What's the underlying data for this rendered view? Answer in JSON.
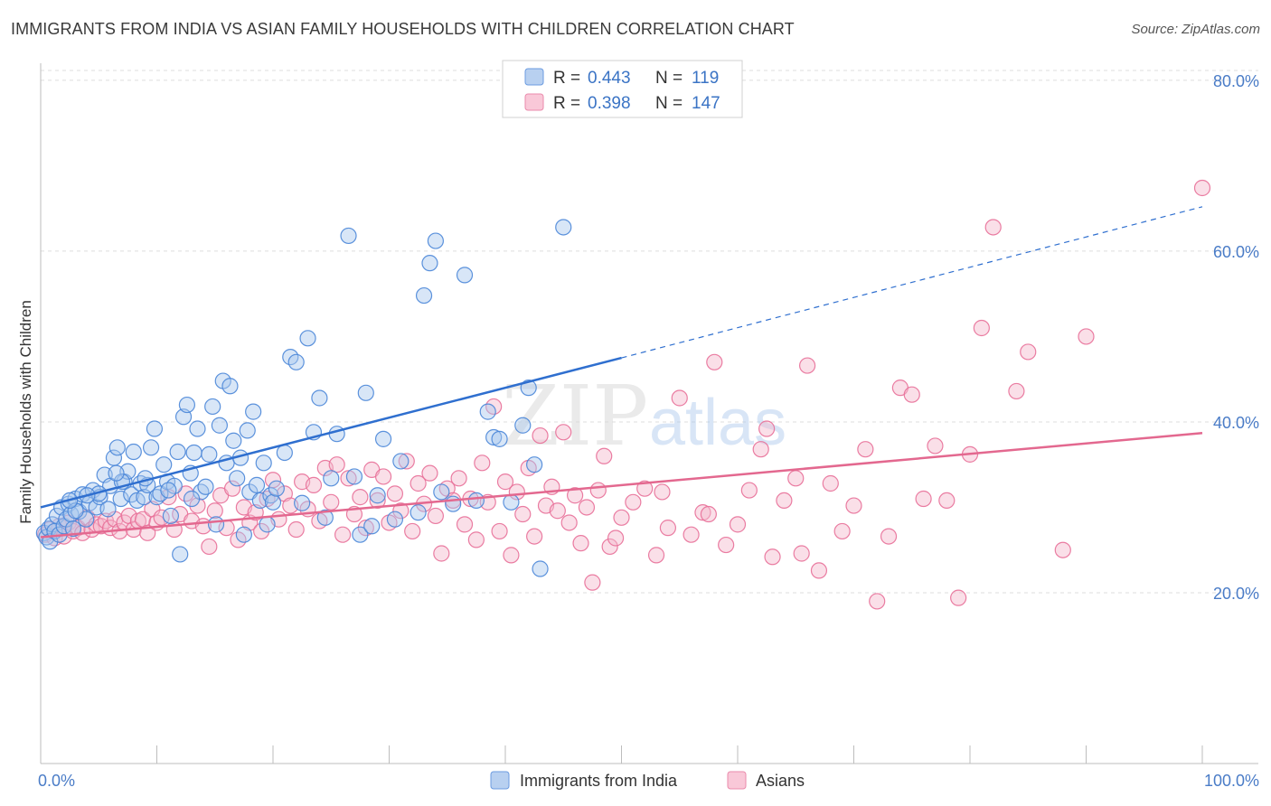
{
  "title": "IMMIGRANTS FROM INDIA VS ASIAN FAMILY HOUSEHOLDS WITH CHILDREN CORRELATION CHART",
  "source": "Source: ZipAtlas.com",
  "watermark": {
    "zip": "ZIP",
    "atlas": "atlas"
  },
  "colors": {
    "blue": "#4a86d8",
    "blue_fill": "#a9c7ee",
    "blue_line": "#2f6fcf",
    "pink": "#e86f98",
    "pink_fill": "#f4b8cc",
    "pink_line": "#e3688f",
    "axis_text": "#4a7cc7",
    "grid": "#dddddd"
  },
  "legend": [
    {
      "r_label": "R =",
      "r_value": "0.443",
      "n_label": "N =",
      "n_value": "119"
    },
    {
      "r_label": "R =",
      "r_value": "0.398",
      "n_label": "N =",
      "n_value": "147"
    }
  ],
  "chart_data": {
    "type": "scatter",
    "title": "IMMIGRANTS FROM INDIA VS ASIAN FAMILY HOUSEHOLDS WITH CHILDREN CORRELATION CHART",
    "xlabel": "",
    "ylabel": "Family Households with Children",
    "xlim": [
      0,
      100
    ],
    "ylim": [
      0,
      82
    ],
    "x_tick_labels": [
      "0.0%",
      "100.0%"
    ],
    "y_ticks": [
      20,
      40,
      60,
      80
    ],
    "y_tick_labels": [
      "20.0%",
      "40.0%",
      "60.0%",
      "80.0%"
    ],
    "grid": true,
    "legend_position": "top-center",
    "series": [
      {
        "name": "Immigrants from India",
        "r": 0.443,
        "n": 119,
        "trend": {
          "x0": 0,
          "y0": 30.0,
          "x1": 50,
          "y1": 47.5,
          "dashed_to_x": 100,
          "dashed_to_y": 65.2
        },
        "points": [
          [
            0.3,
            27.0
          ],
          [
            0.5,
            26.5
          ],
          [
            0.7,
            27.5
          ],
          [
            0.8,
            26.0
          ],
          [
            1.0,
            28.0
          ],
          [
            1.2,
            27.2
          ],
          [
            1.4,
            29.0
          ],
          [
            1.6,
            26.8
          ],
          [
            1.8,
            30.0
          ],
          [
            2.0,
            27.8
          ],
          [
            2.2,
            28.6
          ],
          [
            2.4,
            30.4
          ],
          [
            2.6,
            29.2
          ],
          [
            2.8,
            27.5
          ],
          [
            3.0,
            31.0
          ],
          [
            3.3,
            29.5
          ],
          [
            3.6,
            31.5
          ],
          [
            3.9,
            28.6
          ],
          [
            4.2,
            30.5
          ],
          [
            4.5,
            32.0
          ],
          [
            4.8,
            30.0
          ],
          [
            5.1,
            31.2
          ],
          [
            5.5,
            33.8
          ],
          [
            5.8,
            29.8
          ],
          [
            6.0,
            32.5
          ],
          [
            6.3,
            35.8
          ],
          [
            6.6,
            37.0
          ],
          [
            6.9,
            31.0
          ],
          [
            7.2,
            33.0
          ],
          [
            7.5,
            34.2
          ],
          [
            7.8,
            31.5
          ],
          [
            8.0,
            36.5
          ],
          [
            8.3,
            30.8
          ],
          [
            8.6,
            32.8
          ],
          [
            8.9,
            31.2
          ],
          [
            9.2,
            32.6
          ],
          [
            9.5,
            37.0
          ],
          [
            9.8,
            39.2
          ],
          [
            10.0,
            31.2
          ],
          [
            10.3,
            31.6
          ],
          [
            10.6,
            35.0
          ],
          [
            10.9,
            33.0
          ],
          [
            11.2,
            29.0
          ],
          [
            11.5,
            32.5
          ],
          [
            11.8,
            36.5
          ],
          [
            12.0,
            24.5
          ],
          [
            12.3,
            40.6
          ],
          [
            12.6,
            42.0
          ],
          [
            12.9,
            34.0
          ],
          [
            13.2,
            36.4
          ],
          [
            13.5,
            39.2
          ],
          [
            13.8,
            31.8
          ],
          [
            14.2,
            32.4
          ],
          [
            14.5,
            36.2
          ],
          [
            14.8,
            41.8
          ],
          [
            15.1,
            28.0
          ],
          [
            15.4,
            39.6
          ],
          [
            15.7,
            44.8
          ],
          [
            16.0,
            35.2
          ],
          [
            16.3,
            44.2
          ],
          [
            16.6,
            37.8
          ],
          [
            16.9,
            33.4
          ],
          [
            17.2,
            35.8
          ],
          [
            17.5,
            26.8
          ],
          [
            17.8,
            39.0
          ],
          [
            18.0,
            31.8
          ],
          [
            18.3,
            41.2
          ],
          [
            18.6,
            32.6
          ],
          [
            18.9,
            30.8
          ],
          [
            19.2,
            35.2
          ],
          [
            19.5,
            28.0
          ],
          [
            19.8,
            31.4
          ],
          [
            20.0,
            30.6
          ],
          [
            20.3,
            32.2
          ],
          [
            21.0,
            36.4
          ],
          [
            21.5,
            47.6
          ],
          [
            22.0,
            47.0
          ],
          [
            22.5,
            30.5
          ],
          [
            23.0,
            49.8
          ],
          [
            23.5,
            38.8
          ],
          [
            24.0,
            42.8
          ],
          [
            24.5,
            28.8
          ],
          [
            25.0,
            33.4
          ],
          [
            25.5,
            38.6
          ],
          [
            26.5,
            61.8
          ],
          [
            27.0,
            33.6
          ],
          [
            27.5,
            26.8
          ],
          [
            28.0,
            43.4
          ],
          [
            28.5,
            27.8
          ],
          [
            29.0,
            31.4
          ],
          [
            29.5,
            38.0
          ],
          [
            30.5,
            28.6
          ],
          [
            31.0,
            35.4
          ],
          [
            32.5,
            29.4
          ],
          [
            33.0,
            54.8
          ],
          [
            33.5,
            58.6
          ],
          [
            34.0,
            61.2
          ],
          [
            34.5,
            31.8
          ],
          [
            35.5,
            30.4
          ],
          [
            36.5,
            57.2
          ],
          [
            37.5,
            30.8
          ],
          [
            38.5,
            41.2
          ],
          [
            39.0,
            38.2
          ],
          [
            39.5,
            38.0
          ],
          [
            40.5,
            30.6
          ],
          [
            41.5,
            39.6
          ],
          [
            42.0,
            44.0
          ],
          [
            42.5,
            35.0
          ],
          [
            43.0,
            22.8
          ],
          [
            45.0,
            62.8
          ],
          [
            7.0,
            33.0
          ],
          [
            5.0,
            31.6
          ],
          [
            3.0,
            29.6
          ],
          [
            11.0,
            32.0
          ],
          [
            9.0,
            33.4
          ],
          [
            13.0,
            31.0
          ],
          [
            2.5,
            30.8
          ],
          [
            4.0,
            31.4
          ],
          [
            6.5,
            34.0
          ]
        ]
      },
      {
        "name": "Asians",
        "r": 0.398,
        "n": 147,
        "trend": {
          "x0": 0,
          "y0": 26.5,
          "x1": 100,
          "y1": 38.7
        },
        "points": [
          [
            0.4,
            26.8
          ],
          [
            0.8,
            27.4
          ],
          [
            1.2,
            26.4
          ],
          [
            1.6,
            27.8
          ],
          [
            2.0,
            26.6
          ],
          [
            2.4,
            28.2
          ],
          [
            2.8,
            27.2
          ],
          [
            3.2,
            27.6
          ],
          [
            3.6,
            27.0
          ],
          [
            4.0,
            28.8
          ],
          [
            4.4,
            27.4
          ],
          [
            4.8,
            28.0
          ],
          [
            5.2,
            27.8
          ],
          [
            5.6,
            28.4
          ],
          [
            6.0,
            27.6
          ],
          [
            6.4,
            28.6
          ],
          [
            6.8,
            27.2
          ],
          [
            7.2,
            28.2
          ],
          [
            7.6,
            29.0
          ],
          [
            8.0,
            27.4
          ],
          [
            8.4,
            28.4
          ],
          [
            8.8,
            28.6
          ],
          [
            9.2,
            27.0
          ],
          [
            9.6,
            29.8
          ],
          [
            10.0,
            28.2
          ],
          [
            10.4,
            28.8
          ],
          [
            11.0,
            31.2
          ],
          [
            11.5,
            27.4
          ],
          [
            12.0,
            29.2
          ],
          [
            12.5,
            31.6
          ],
          [
            13.0,
            28.4
          ],
          [
            13.5,
            30.2
          ],
          [
            14.0,
            27.8
          ],
          [
            14.5,
            25.4
          ],
          [
            15.0,
            29.6
          ],
          [
            15.5,
            31.4
          ],
          [
            16.0,
            27.6
          ],
          [
            16.5,
            32.2
          ],
          [
            17.0,
            26.2
          ],
          [
            17.5,
            30.0
          ],
          [
            18.0,
            28.2
          ],
          [
            18.5,
            29.4
          ],
          [
            19.0,
            27.2
          ],
          [
            19.5,
            31.0
          ],
          [
            20.0,
            33.2
          ],
          [
            20.5,
            28.6
          ],
          [
            21.0,
            31.6
          ],
          [
            21.5,
            30.2
          ],
          [
            22.0,
            27.4
          ],
          [
            22.5,
            33.0
          ],
          [
            23.0,
            29.8
          ],
          [
            23.5,
            32.6
          ],
          [
            24.0,
            28.4
          ],
          [
            24.5,
            34.6
          ],
          [
            25.0,
            30.6
          ],
          [
            25.5,
            35.0
          ],
          [
            26.0,
            26.8
          ],
          [
            26.5,
            33.4
          ],
          [
            27.0,
            29.2
          ],
          [
            27.5,
            31.2
          ],
          [
            28.0,
            27.6
          ],
          [
            28.5,
            34.4
          ],
          [
            29.0,
            30.8
          ],
          [
            29.5,
            33.6
          ],
          [
            30.0,
            28.2
          ],
          [
            30.5,
            31.6
          ],
          [
            31.0,
            29.6
          ],
          [
            31.5,
            35.4
          ],
          [
            32.0,
            27.2
          ],
          [
            32.5,
            32.8
          ],
          [
            33.0,
            30.4
          ],
          [
            33.5,
            34.0
          ],
          [
            34.0,
            29.0
          ],
          [
            34.5,
            24.6
          ],
          [
            35.0,
            32.2
          ],
          [
            35.5,
            30.8
          ],
          [
            36.0,
            33.4
          ],
          [
            36.5,
            28.0
          ],
          [
            37.0,
            31.0
          ],
          [
            37.5,
            26.2
          ],
          [
            38.0,
            35.2
          ],
          [
            38.5,
            30.6
          ],
          [
            39.0,
            41.8
          ],
          [
            39.5,
            27.2
          ],
          [
            40.0,
            33.0
          ],
          [
            40.5,
            24.4
          ],
          [
            41.0,
            31.8
          ],
          [
            41.5,
            29.2
          ],
          [
            42.0,
            34.6
          ],
          [
            42.5,
            26.6
          ],
          [
            43.0,
            38.4
          ],
          [
            43.5,
            30.2
          ],
          [
            44.0,
            32.4
          ],
          [
            44.5,
            29.6
          ],
          [
            45.0,
            38.8
          ],
          [
            45.5,
            28.2
          ],
          [
            46.0,
            31.4
          ],
          [
            46.5,
            25.8
          ],
          [
            47.0,
            30.0
          ],
          [
            47.5,
            21.2
          ],
          [
            48.0,
            32.0
          ],
          [
            48.5,
            36.0
          ],
          [
            49.0,
            25.4
          ],
          [
            50.0,
            28.8
          ],
          [
            51.0,
            30.6
          ],
          [
            52.0,
            32.2
          ],
          [
            53.0,
            24.4
          ],
          [
            54.0,
            27.6
          ],
          [
            55.0,
            42.8
          ],
          [
            56.0,
            26.8
          ],
          [
            57.0,
            29.4
          ],
          [
            58.0,
            47.0
          ],
          [
            59.0,
            25.6
          ],
          [
            60.0,
            28.0
          ],
          [
            61.0,
            32.0
          ],
          [
            62.0,
            36.8
          ],
          [
            63.0,
            24.2
          ],
          [
            64.0,
            30.8
          ],
          [
            65.0,
            33.4
          ],
          [
            66.0,
            46.6
          ],
          [
            67.0,
            22.6
          ],
          [
            68.0,
            32.8
          ],
          [
            69.0,
            27.2
          ],
          [
            70.0,
            30.2
          ],
          [
            71.0,
            36.8
          ],
          [
            72.0,
            19.0
          ],
          [
            73.0,
            26.6
          ],
          [
            74.0,
            44.0
          ],
          [
            75.0,
            43.2
          ],
          [
            76.0,
            31.0
          ],
          [
            77.0,
            37.2
          ],
          [
            78.0,
            30.8
          ],
          [
            79.0,
            19.4
          ],
          [
            80.0,
            36.2
          ],
          [
            81.0,
            51.0
          ],
          [
            82.0,
            62.8
          ],
          [
            84.0,
            43.6
          ],
          [
            85.0,
            48.2
          ],
          [
            88.0,
            25.0
          ],
          [
            90.0,
            50.0
          ],
          [
            100.0,
            67.4
          ],
          [
            62.5,
            39.2
          ],
          [
            57.5,
            29.2
          ],
          [
            53.5,
            31.8
          ],
          [
            49.5,
            26.4
          ],
          [
            65.5,
            24.6
          ]
        ]
      }
    ]
  }
}
